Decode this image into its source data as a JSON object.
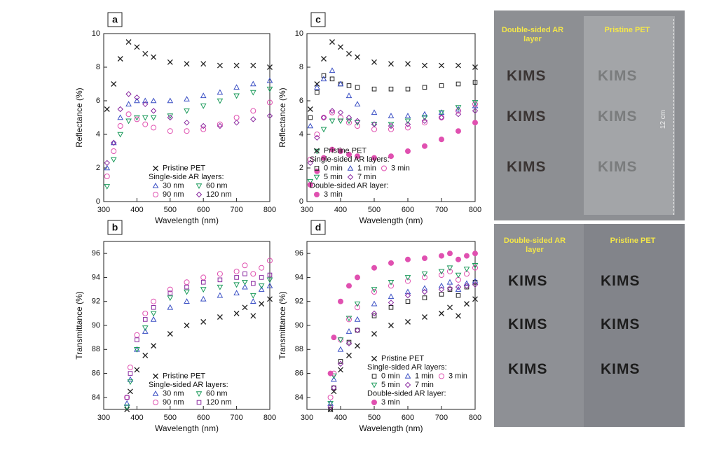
{
  "chart_data": [
    {
      "type": "scatter",
      "panel_label": "a",
      "x_label": "Wavelength (nm)",
      "y_label": "Reflectance (%)",
      "xlim": [
        300,
        800
      ],
      "xticks": [
        300,
        400,
        500,
        600,
        700,
        800
      ],
      "ylim": [
        0,
        10
      ],
      "yticks": [
        0,
        2,
        4,
        6,
        8,
        10
      ],
      "legend_loc": "lower center",
      "legend_columns": 2,
      "x": [
        310,
        330,
        350,
        375,
        400,
        425,
        450,
        500,
        550,
        600,
        650,
        700,
        750,
        800
      ],
      "series": [
        {
          "name": "Pristine PET",
          "color": "#222222",
          "marker": "x",
          "values": [
            5.5,
            7.0,
            8.5,
            9.5,
            9.2,
            8.8,
            8.6,
            8.3,
            8.2,
            8.2,
            8.1,
            8.1,
            8.1,
            8.0
          ]
        },
        {
          "name": "30 nm",
          "group": "Single-side AR layers:",
          "color": "#3a4fc4",
          "marker": "triangle",
          "values": [
            2.0,
            3.5,
            5.0,
            5.8,
            6.0,
            6.0,
            6.0,
            6.0,
            6.1,
            6.3,
            6.5,
            6.8,
            7.0,
            7.2
          ]
        },
        {
          "name": "60 nm",
          "group": "Single-side AR layers:",
          "color": "#1a9a5a",
          "marker": "triangle-down",
          "values": [
            0.9,
            2.5,
            4.0,
            4.8,
            5.0,
            5.0,
            5.0,
            5.1,
            5.4,
            5.7,
            6.0,
            6.3,
            6.5,
            6.7
          ]
        },
        {
          "name": "90 nm",
          "group": "Single-side AR layers:",
          "color": "#e050b0",
          "marker": "circle",
          "values": [
            1.5,
            3.0,
            4.5,
            5.2,
            4.9,
            4.6,
            4.4,
            4.2,
            4.2,
            4.3,
            4.6,
            5.0,
            5.4,
            5.9
          ]
        },
        {
          "name": "120 nm",
          "group": "Single-side AR layers:",
          "color": "#8a2aa0",
          "marker": "diamond",
          "values": [
            2.3,
            3.5,
            5.5,
            6.4,
            6.2,
            5.8,
            5.4,
            5.0,
            4.7,
            4.5,
            4.5,
            4.7,
            4.9,
            5.1
          ]
        }
      ]
    },
    {
      "type": "scatter",
      "panel_label": "c",
      "x_label": "Wavelength (nm)",
      "y_label": "Reflectance (%)",
      "xlim": [
        300,
        800
      ],
      "xticks": [
        300,
        400,
        500,
        600,
        700,
        800
      ],
      "ylim": [
        0,
        10
      ],
      "yticks": [
        0,
        2,
        4,
        6,
        8,
        10
      ],
      "legend_loc": "lower left",
      "legend_columns": 3,
      "x": [
        310,
        330,
        350,
        375,
        400,
        425,
        450,
        500,
        550,
        600,
        650,
        700,
        750,
        800
      ],
      "series": [
        {
          "name": "Pristine PET",
          "color": "#222222",
          "marker": "x",
          "values": [
            5.5,
            7.0,
            8.5,
            9.5,
            9.2,
            8.8,
            8.6,
            8.3,
            8.2,
            8.2,
            8.1,
            8.1,
            8.1,
            8.0
          ]
        },
        {
          "name": "0 min",
          "group": "Single-sided AR layers:",
          "color": "#222222",
          "marker": "square",
          "values": [
            5.0,
            6.5,
            7.5,
            7.3,
            7.0,
            6.9,
            6.8,
            6.7,
            6.7,
            6.7,
            6.8,
            6.9,
            7.0,
            7.1
          ]
        },
        {
          "name": "1 min",
          "group": "Single-sided AR layers:",
          "color": "#3a4fc4",
          "marker": "triangle",
          "values": [
            4.5,
            6.8,
            7.3,
            7.8,
            7.0,
            6.3,
            5.8,
            5.3,
            5.1,
            5.1,
            5.2,
            5.3,
            5.5,
            5.7
          ]
        },
        {
          "name": "3 min",
          "group": "Single-sided AR layers:",
          "color": "#e050b0",
          "marker": "circle",
          "values": [
            2.5,
            4.0,
            5.0,
            5.3,
            5.0,
            4.7,
            4.5,
            4.3,
            4.3,
            4.4,
            4.7,
            5.0,
            5.4,
            5.8
          ]
        },
        {
          "name": "5 min",
          "group": "Single-sided AR layers:",
          "color": "#1a9a5a",
          "marker": "triangle-down",
          "values": [
            1.2,
            3.0,
            4.3,
            4.8,
            4.8,
            4.8,
            4.7,
            4.6,
            4.6,
            4.8,
            5.0,
            5.3,
            5.6,
            5.9
          ]
        },
        {
          "name": "7 min",
          "group": "Single-sided AR layers:",
          "color": "#8a2aa0",
          "marker": "diamond",
          "values": [
            2.3,
            3.8,
            5.0,
            5.4,
            5.3,
            5.0,
            4.8,
            4.6,
            4.5,
            4.6,
            4.8,
            5.0,
            5.2,
            5.4
          ]
        },
        {
          "name": "3 min",
          "group": "Double-sided AR layer:",
          "color": "#e050b0",
          "marker": "circle-filled",
          "values": [
            1.0,
            1.8,
            2.6,
            3.1,
            3.0,
            2.8,
            2.7,
            2.6,
            2.7,
            3.0,
            3.3,
            3.7,
            4.2,
            4.7
          ]
        }
      ]
    },
    {
      "type": "scatter",
      "panel_label": "b",
      "x_label": "Wavelength (nm)",
      "y_label": "Transmittance (%)",
      "xlim": [
        300,
        800
      ],
      "xticks": [
        300,
        400,
        500,
        600,
        700,
        800
      ],
      "ylim": [
        83,
        97
      ],
      "yticks": [
        84,
        86,
        88,
        90,
        92,
        94,
        96
      ],
      "legend_loc": "lower center",
      "legend_columns": 2,
      "x": [
        370,
        380,
        400,
        425,
        450,
        500,
        550,
        600,
        650,
        700,
        725,
        750,
        775,
        800
      ],
      "series": [
        {
          "name": "Pristine PET",
          "color": "#222222",
          "marker": "x",
          "values": [
            83,
            84.5,
            86.3,
            87.5,
            88.3,
            89.3,
            90.0,
            90.3,
            90.7,
            91.0,
            91.5,
            90.8,
            91.8,
            92.2
          ]
        },
        {
          "name": "30 nm",
          "group": "Single-sided AR layers:",
          "color": "#3a4fc4",
          "marker": "triangle",
          "values": [
            83.5,
            85.5,
            88,
            89.5,
            90.5,
            91.5,
            92,
            92.2,
            92.5,
            92.7,
            93.2,
            92,
            93,
            93.3
          ]
        },
        {
          "name": "60 nm",
          "group": "Single-sided AR layers:",
          "color": "#1a9a5a",
          "marker": "triangle-down",
          "values": [
            83.2,
            85.3,
            88,
            89.8,
            91,
            92.3,
            92.8,
            93,
            93.2,
            93.4,
            93.6,
            92.5,
            93.3,
            93.8
          ]
        },
        {
          "name": "90 nm",
          "group": "Single-sided AR layers:",
          "color": "#e050b0",
          "marker": "circle",
          "values": [
            84,
            86.5,
            89.2,
            91,
            92,
            93,
            93.6,
            94,
            94.3,
            94.5,
            95,
            94.3,
            94.8,
            95.4
          ]
        },
        {
          "name": "120 nm",
          "group": "Single-sided AR layers:",
          "color": "#8a2aa0",
          "marker": "square",
          "values": [
            84,
            86,
            88.8,
            90.5,
            91.5,
            92.7,
            93.2,
            93.6,
            93.8,
            94,
            94.3,
            93.5,
            94,
            94.2
          ]
        }
      ]
    },
    {
      "type": "scatter",
      "panel_label": "d",
      "x_label": "Wavelength (nm)",
      "y_label": "Transmittance (%)",
      "xlim": [
        300,
        800
      ],
      "xticks": [
        300,
        400,
        500,
        600,
        700,
        800
      ],
      "ylim": [
        83,
        97
      ],
      "yticks": [
        84,
        86,
        88,
        90,
        92,
        94,
        96
      ],
      "legend_loc": "lower right",
      "legend_columns": 3,
      "x": [
        370,
        380,
        400,
        425,
        450,
        500,
        550,
        600,
        650,
        700,
        725,
        750,
        775,
        800
      ],
      "series": [
        {
          "name": "Pristine PET",
          "color": "#222222",
          "marker": "x",
          "values": [
            83,
            84.5,
            86.3,
            87.5,
            88.3,
            89.3,
            90.0,
            90.3,
            90.7,
            91.0,
            91.5,
            90.8,
            91.8,
            92.2
          ]
        },
        {
          "name": "0 min",
          "group": "Single-sided AR layers:",
          "color": "#222222",
          "marker": "square",
          "values": [
            83,
            84.8,
            87,
            88.6,
            89.6,
            90.8,
            91.5,
            92,
            92.3,
            92.6,
            93,
            92.5,
            93.2,
            93.6
          ]
        },
        {
          "name": "1 min",
          "group": "Single-sided AR layers:",
          "color": "#3a4fc4",
          "marker": "triangle",
          "values": [
            83.5,
            85.5,
            88,
            89.5,
            90.5,
            91.8,
            92.4,
            92.8,
            93.1,
            93.3,
            93.6,
            93,
            93.5,
            93.7
          ]
        },
        {
          "name": "3 min",
          "group": "Single-sided AR layers:",
          "color": "#e050b0",
          "marker": "circle",
          "values": [
            84,
            86,
            88.8,
            90.5,
            91.5,
            92.8,
            93.3,
            93.7,
            94,
            94.2,
            94.5,
            93.8,
            94.3,
            94.8
          ]
        },
        {
          "name": "5 min",
          "group": "Single-sided AR layers:",
          "color": "#1a9a5a",
          "marker": "triangle-down",
          "values": [
            83.5,
            85.8,
            88.8,
            90.6,
            91.8,
            93,
            93.6,
            94,
            94.3,
            94.5,
            94.8,
            94.2,
            94.7,
            95
          ]
        },
        {
          "name": "7 min",
          "group": "Single-sided AR layers:",
          "color": "#8a2aa0",
          "marker": "diamond",
          "values": [
            83.2,
            84.8,
            86.8,
            88.5,
            89.6,
            91,
            91.9,
            92.5,
            92.8,
            93,
            93.1,
            93.2,
            93.3,
            93.4
          ]
        },
        {
          "name": "3 min",
          "group": "Double-sided AR layer:",
          "color": "#e050b0",
          "marker": "circle-filled",
          "values": [
            86,
            89,
            92,
            93.3,
            94,
            94.8,
            95.2,
            95.5,
            95.6,
            95.8,
            96,
            95.5,
            95.8,
            96
          ]
        }
      ]
    }
  ],
  "photos": [
    {
      "left_label": "Double-sided AR layer",
      "right_label": "Pristine PET",
      "logo": "KIMS",
      "scale_label": "12 cm"
    },
    {
      "left_label": "Double-sided AR layer",
      "right_label": "Pristine PET",
      "logo": "KIMS"
    }
  ]
}
